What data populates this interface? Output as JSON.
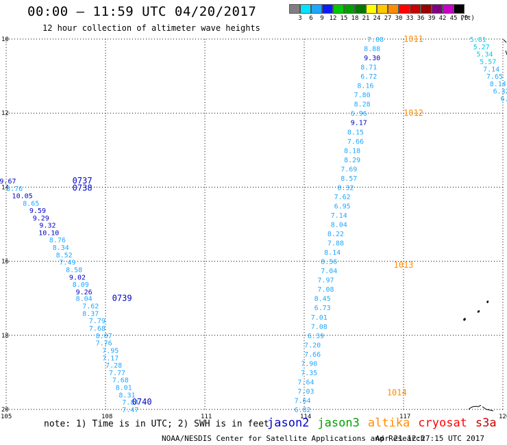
{
  "header": {
    "title": "00:00 – 11:59 UTC 04/20/2017",
    "subtitle": "12 hour collection of altimeter wave heights"
  },
  "legend": {
    "unit": "(ft)",
    "swatches": [
      {
        "label": "3",
        "color": "#7f7f7f"
      },
      {
        "label": "6",
        "color": "#00e5ff"
      },
      {
        "label": "9",
        "color": "#1ea7ff"
      },
      {
        "label": "12",
        "color": "#0a1cff"
      },
      {
        "label": "15",
        "color": "#00c800"
      },
      {
        "label": "18",
        "color": "#00a000"
      },
      {
        "label": "21",
        "color": "#007800"
      },
      {
        "label": "24",
        "color": "#ffff00"
      },
      {
        "label": "27",
        "color": "#ffc800"
      },
      {
        "label": "30",
        "color": "#ff8c00"
      },
      {
        "label": "33",
        "color": "#ff0000"
      },
      {
        "label": "36",
        "color": "#c80000"
      },
      {
        "label": "39",
        "color": "#960000"
      },
      {
        "label": "42",
        "color": "#800080"
      },
      {
        "label": "45",
        "color": "#c800c8"
      },
      {
        "label": "70",
        "color": "#000000"
      }
    ]
  },
  "map": {
    "lon_ticks": [
      "105",
      "108",
      "111",
      "114",
      "117",
      "120"
    ],
    "lat_ticks": [
      "10",
      "12",
      "14",
      "16",
      "18",
      "20"
    ],
    "lon_range": [
      105,
      120
    ],
    "lat_range": [
      10,
      20
    ],
    "colors": {
      "c6": "#1ea7ff",
      "c9": "#0000c8",
      "c3": "#00c8e6",
      "orange": "#ff8c00",
      "green": "#00a000"
    },
    "track_times": [
      {
        "text": "0737",
        "lon": 107.0,
        "lat": 13.83,
        "color": "c9"
      },
      {
        "text": "0738",
        "lon": 107.0,
        "lat": 14.02,
        "color": "c9"
      },
      {
        "text": "0739",
        "lon": 108.2,
        "lat": 17.0,
        "color": "c9"
      },
      {
        "text": "0740",
        "lon": 108.8,
        "lat": 19.8,
        "color": "c9"
      },
      {
        "text": "1011",
        "lon": 117.0,
        "lat": 10.0,
        "color": "orange"
      },
      {
        "text": "1012",
        "lon": 117.0,
        "lat": 12.0,
        "color": "orange"
      },
      {
        "text": "1013",
        "lon": 116.7,
        "lat": 16.1,
        "color": "orange"
      },
      {
        "text": "1014",
        "lon": 116.5,
        "lat": 19.55,
        "color": "orange"
      },
      {
        "text": "0",
        "lon": 120.5,
        "lat": 10.0,
        "color": "green"
      }
    ],
    "swh_values": [
      {
        "text": "9.67",
        "lon": 105.3,
        "lat": 13.83,
        "color": "c9"
      },
      {
        "text": "8.76",
        "lon": 105.5,
        "lat": 14.03,
        "color": "c6"
      },
      {
        "text": "10.05",
        "lon": 105.8,
        "lat": 14.22,
        "color": "c9"
      },
      {
        "text": "8.65",
        "lon": 106.0,
        "lat": 14.43,
        "color": "c6"
      },
      {
        "text": "9.59",
        "lon": 106.2,
        "lat": 14.62,
        "color": "c9"
      },
      {
        "text": "9.29",
        "lon": 106.3,
        "lat": 14.82,
        "color": "c9"
      },
      {
        "text": "9.32",
        "lon": 106.5,
        "lat": 15.02,
        "color": "c9"
      },
      {
        "text": "10.10",
        "lon": 106.6,
        "lat": 15.22,
        "color": "c9"
      },
      {
        "text": "8.76",
        "lon": 106.8,
        "lat": 15.42,
        "color": "c6"
      },
      {
        "text": "8.34",
        "lon": 106.9,
        "lat": 15.62,
        "color": "c6"
      },
      {
        "text": "8.52",
        "lon": 107.0,
        "lat": 15.82,
        "color": "c6"
      },
      {
        "text": "7.49",
        "lon": 107.1,
        "lat": 16.02,
        "color": "c6"
      },
      {
        "text": "8.58",
        "lon": 107.3,
        "lat": 16.22,
        "color": "c6"
      },
      {
        "text": "9.02",
        "lon": 107.4,
        "lat": 16.42,
        "color": "c9"
      },
      {
        "text": "8.09",
        "lon": 107.5,
        "lat": 16.62,
        "color": "c6"
      },
      {
        "text": "9.26",
        "lon": 107.6,
        "lat": 16.82,
        "color": "c9"
      },
      {
        "text": "8.04",
        "lon": 107.6,
        "lat": 17.0,
        "color": "c6"
      },
      {
        "text": "7.62",
        "lon": 107.8,
        "lat": 17.2,
        "color": "c6"
      },
      {
        "text": "8.37",
        "lon": 107.8,
        "lat": 17.4,
        "color": "c6"
      },
      {
        "text": "7.79",
        "lon": 108.0,
        "lat": 17.6,
        "color": "c6"
      },
      {
        "text": "7.68",
        "lon": 108.0,
        "lat": 17.8,
        "color": "c6"
      },
      {
        "text": "8.07",
        "lon": 108.2,
        "lat": 18.0,
        "color": "c6"
      },
      {
        "text": "7.76",
        "lon": 108.2,
        "lat": 18.2,
        "color": "c6"
      },
      {
        "text": "7.95",
        "lon": 108.4,
        "lat": 18.4,
        "color": "c6"
      },
      {
        "text": "7.17",
        "lon": 108.4,
        "lat": 18.6,
        "color": "c6"
      },
      {
        "text": "7.28",
        "lon": 108.5,
        "lat": 18.8,
        "color": "c6"
      },
      {
        "text": "7.77",
        "lon": 108.6,
        "lat": 19.0,
        "color": "c6"
      },
      {
        "text": "7.68",
        "lon": 108.7,
        "lat": 19.2,
        "color": "c6"
      },
      {
        "text": "8.01",
        "lon": 108.8,
        "lat": 19.4,
        "color": "c6"
      },
      {
        "text": "8.31",
        "lon": 108.9,
        "lat": 19.6,
        "color": "c6"
      },
      {
        "text": "7.84",
        "lon": 109.0,
        "lat": 19.8,
        "color": "c6"
      },
      {
        "text": "7.47",
        "lon": 109.0,
        "lat": 20.0,
        "color": "c6"
      },
      {
        "text": "7.08",
        "lon": 116.4,
        "lat": 10.0,
        "color": "c6"
      },
      {
        "text": "8.88",
        "lon": 116.3,
        "lat": 10.25,
        "color": "c6"
      },
      {
        "text": "9.30",
        "lon": 116.3,
        "lat": 10.5,
        "color": "c9"
      },
      {
        "text": "8.71",
        "lon": 116.2,
        "lat": 10.75,
        "color": "c6"
      },
      {
        "text": "6.72",
        "lon": 116.2,
        "lat": 11.0,
        "color": "c6"
      },
      {
        "text": "8.16",
        "lon": 116.1,
        "lat": 11.25,
        "color": "c6"
      },
      {
        "text": "7.80",
        "lon": 116.0,
        "lat": 11.5,
        "color": "c6"
      },
      {
        "text": "8.28",
        "lon": 116.0,
        "lat": 11.75,
        "color": "c6"
      },
      {
        "text": "6.96",
        "lon": 115.9,
        "lat": 12.0,
        "color": "c6"
      },
      {
        "text": "9.17",
        "lon": 115.9,
        "lat": 12.25,
        "color": "c9"
      },
      {
        "text": "8.15",
        "lon": 115.8,
        "lat": 12.5,
        "color": "c6"
      },
      {
        "text": "7.66",
        "lon": 115.8,
        "lat": 12.75,
        "color": "c6"
      },
      {
        "text": "8.18",
        "lon": 115.7,
        "lat": 13.0,
        "color": "c6"
      },
      {
        "text": "8.29",
        "lon": 115.7,
        "lat": 13.25,
        "color": "c6"
      },
      {
        "text": "7.69",
        "lon": 115.6,
        "lat": 13.5,
        "color": "c6"
      },
      {
        "text": "8.57",
        "lon": 115.6,
        "lat": 13.75,
        "color": "c6"
      },
      {
        "text": "8.32",
        "lon": 115.5,
        "lat": 14.0,
        "color": "c6"
      },
      {
        "text": "7.62",
        "lon": 115.4,
        "lat": 14.25,
        "color": "c6"
      },
      {
        "text": "6.95",
        "lon": 115.4,
        "lat": 14.5,
        "color": "c6"
      },
      {
        "text": "7.14",
        "lon": 115.3,
        "lat": 14.75,
        "color": "c6"
      },
      {
        "text": "8.04",
        "lon": 115.3,
        "lat": 15.0,
        "color": "c6"
      },
      {
        "text": "8.22",
        "lon": 115.2,
        "lat": 15.25,
        "color": "c6"
      },
      {
        "text": "7.88",
        "lon": 115.2,
        "lat": 15.5,
        "color": "c6"
      },
      {
        "text": "8.14",
        "lon": 115.1,
        "lat": 15.75,
        "color": "c6"
      },
      {
        "text": "8.56",
        "lon": 115.0,
        "lat": 16.0,
        "color": "c6"
      },
      {
        "text": "7.04",
        "lon": 115.0,
        "lat": 16.25,
        "color": "c6"
      },
      {
        "text": "7.97",
        "lon": 114.9,
        "lat": 16.5,
        "color": "c6"
      },
      {
        "text": "7.08",
        "lon": 114.9,
        "lat": 16.75,
        "color": "c6"
      },
      {
        "text": "8.45",
        "lon": 114.8,
        "lat": 17.0,
        "color": "c6"
      },
      {
        "text": "6.73",
        "lon": 114.8,
        "lat": 17.25,
        "color": "c6"
      },
      {
        "text": "7.01",
        "lon": 114.7,
        "lat": 17.5,
        "color": "c6"
      },
      {
        "text": "7.08",
        "lon": 114.7,
        "lat": 17.75,
        "color": "c6"
      },
      {
        "text": "6.39",
        "lon": 114.6,
        "lat": 18.0,
        "color": "c6"
      },
      {
        "text": "7.20",
        "lon": 114.5,
        "lat": 18.25,
        "color": "c6"
      },
      {
        "text": "7.66",
        "lon": 114.5,
        "lat": 18.5,
        "color": "c6"
      },
      {
        "text": "7.90",
        "lon": 114.4,
        "lat": 18.75,
        "color": "c6"
      },
      {
        "text": "7.35",
        "lon": 114.4,
        "lat": 19.0,
        "color": "c6"
      },
      {
        "text": "7.64",
        "lon": 114.3,
        "lat": 19.25,
        "color": "c6"
      },
      {
        "text": "7.03",
        "lon": 114.3,
        "lat": 19.5,
        "color": "c6"
      },
      {
        "text": "7.64",
        "lon": 114.2,
        "lat": 19.75,
        "color": "c6"
      },
      {
        "text": "6.82",
        "lon": 114.2,
        "lat": 20.0,
        "color": "c6"
      },
      {
        "text": "5.81",
        "lon": 119.5,
        "lat": 10.0,
        "color": "c3"
      },
      {
        "text": "5.27",
        "lon": 119.6,
        "lat": 10.2,
        "color": "c3"
      },
      {
        "text": "5.34",
        "lon": 119.7,
        "lat": 10.4,
        "color": "c3"
      },
      {
        "text": "5.57",
        "lon": 119.8,
        "lat": 10.6,
        "color": "c3"
      },
      {
        "text": "7.14",
        "lon": 119.9,
        "lat": 10.8,
        "color": "c6"
      },
      {
        "text": "7.65",
        "lon": 120.0,
        "lat": 11.0,
        "color": "c6"
      },
      {
        "text": "8.14",
        "lon": 120.1,
        "lat": 11.2,
        "color": "c6"
      },
      {
        "text": "6.32",
        "lon": 120.2,
        "lat": 11.4,
        "color": "c6"
      },
      {
        "text": "6.6",
        "lon": 120.3,
        "lat": 11.6,
        "color": "c6"
      },
      {
        "text": "5",
        "lon": 120.4,
        "lat": 11.8,
        "color": "c3"
      },
      {
        "text": "5",
        "lon": 120.4,
        "lat": 12.0,
        "color": "c3"
      }
    ]
  },
  "footer": {
    "note": "note: 1) Time is in UTC; 2) SWH is in feet",
    "satellites": [
      {
        "name": "jason2",
        "color": "#0000c8"
      },
      {
        "name": "jason3",
        "color": "#00a000"
      },
      {
        "name": "altika",
        "color": "#ff8c00"
      },
      {
        "name": "cryosat",
        "color": "#ff0000"
      },
      {
        "name": "s3a",
        "color": "#c80000"
      }
    ],
    "credit": "NOAA/NESDIS Center for Satellite Applications and Research",
    "timestamp": "Apr 21 12:27:15 UTC 2017"
  }
}
